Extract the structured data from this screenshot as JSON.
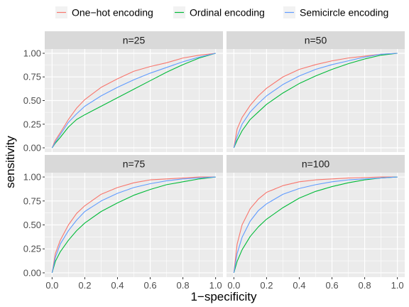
{
  "chart_data": {
    "type": "line",
    "title": "",
    "xlabel": "1−specificity",
    "ylabel": "sensitivity",
    "xlim": [
      0,
      1
    ],
    "ylim": [
      0,
      1
    ],
    "grid": true,
    "legend_position": "top",
    "x_ticks": [
      "0.0",
      "0.2",
      "0.4",
      "0.6",
      "0.8",
      "1.0"
    ],
    "y_ticks": [
      "0.00",
      "0.25",
      "0.50",
      "0.75",
      "1.00"
    ],
    "x": [
      0,
      0.02,
      0.05,
      0.1,
      0.15,
      0.2,
      0.3,
      0.4,
      0.5,
      0.6,
      0.7,
      0.8,
      0.9,
      1.0
    ],
    "series_meta": [
      {
        "name": "One−hot encoding",
        "color": "#F8766D"
      },
      {
        "name": "Ordinal encoding",
        "color": "#00BA38"
      },
      {
        "name": "Semicircle encoding",
        "color": "#619CFF"
      }
    ],
    "panels": [
      {
        "label": "n=25",
        "series": [
          {
            "name": "One−hot encoding",
            "values": [
              0,
              0.08,
              0.16,
              0.3,
              0.42,
              0.51,
              0.64,
              0.73,
              0.81,
              0.86,
              0.9,
              0.95,
              0.98,
              1.0
            ]
          },
          {
            "name": "Ordinal encoding",
            "values": [
              0,
              0.05,
              0.11,
              0.22,
              0.3,
              0.35,
              0.44,
              0.53,
              0.62,
              0.71,
              0.8,
              0.88,
              0.95,
              1.0
            ]
          },
          {
            "name": "Semicircle encoding",
            "values": [
              0,
              0.06,
              0.14,
              0.27,
              0.36,
              0.44,
              0.55,
              0.64,
              0.72,
              0.79,
              0.85,
              0.91,
              0.96,
              1.0
            ]
          }
        ]
      },
      {
        "label": "n=50",
        "series": [
          {
            "name": "One−hot encoding",
            "values": [
              0,
              0.2,
              0.32,
              0.45,
              0.55,
              0.63,
              0.75,
              0.83,
              0.88,
              0.92,
              0.95,
              0.97,
              0.99,
              1.0
            ]
          },
          {
            "name": "Ordinal encoding",
            "values": [
              0,
              0.08,
              0.18,
              0.3,
              0.38,
              0.46,
              0.58,
              0.68,
              0.76,
              0.83,
              0.89,
              0.94,
              0.98,
              1.0
            ]
          },
          {
            "name": "Semicircle encoding",
            "values": [
              0,
              0.12,
              0.25,
              0.38,
              0.47,
              0.55,
              0.67,
              0.76,
              0.83,
              0.88,
              0.92,
              0.96,
              0.99,
              1.0
            ]
          }
        ]
      },
      {
        "label": "n=75",
        "series": [
          {
            "name": "One−hot encoding",
            "values": [
              0,
              0.2,
              0.34,
              0.5,
              0.62,
              0.7,
              0.82,
              0.89,
              0.94,
              0.97,
              0.98,
              0.99,
              1.0,
              1.0
            ]
          },
          {
            "name": "Ordinal encoding",
            "values": [
              0,
              0.12,
              0.22,
              0.34,
              0.44,
              0.52,
              0.64,
              0.73,
              0.81,
              0.87,
              0.92,
              0.95,
              0.98,
              1.0
            ]
          },
          {
            "name": "Semicircle encoding",
            "values": [
              0,
              0.16,
              0.3,
              0.44,
              0.55,
              0.64,
              0.75,
              0.83,
              0.89,
              0.93,
              0.96,
              0.98,
              0.99,
              1.0
            ]
          }
        ]
      },
      {
        "label": "n=100",
        "series": [
          {
            "name": "One−hot encoding",
            "values": [
              0,
              0.3,
              0.5,
              0.67,
              0.77,
              0.84,
              0.91,
              0.95,
              0.97,
              0.98,
              0.99,
              0.995,
              1.0,
              1.0
            ]
          },
          {
            "name": "Ordinal encoding",
            "values": [
              0,
              0.12,
              0.24,
              0.38,
              0.48,
              0.56,
              0.68,
              0.78,
              0.85,
              0.9,
              0.94,
              0.97,
              0.99,
              1.0
            ]
          },
          {
            "name": "Semicircle encoding",
            "values": [
              0,
              0.2,
              0.37,
              0.54,
              0.65,
              0.72,
              0.82,
              0.88,
              0.92,
              0.95,
              0.97,
              0.98,
              0.99,
              1.0
            ]
          }
        ]
      }
    ]
  }
}
